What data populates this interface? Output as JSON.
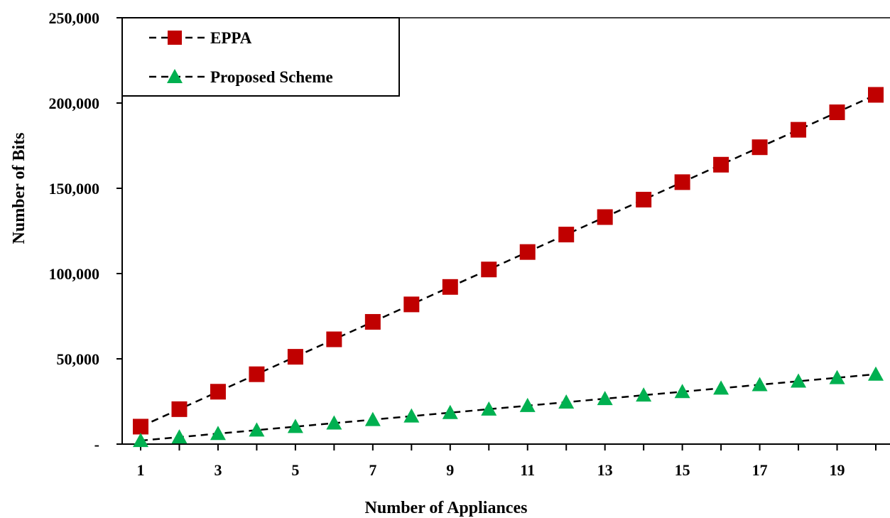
{
  "chart_data": {
    "type": "line",
    "title": "",
    "xlabel": "Number of Appliances",
    "ylabel": "Number of Bits",
    "x": [
      1,
      2,
      3,
      4,
      5,
      6,
      7,
      8,
      9,
      10,
      11,
      12,
      13,
      14,
      15,
      16,
      17,
      18,
      19,
      20
    ],
    "x_tick_labels": [
      "1",
      "3",
      "5",
      "7",
      "9",
      "11",
      "13",
      "15",
      "17",
      "19"
    ],
    "y_tick_labels": [
      "-",
      "50,000",
      "100,000",
      "150,000",
      "200,000",
      "250,000"
    ],
    "xlim": [
      0,
      20.2
    ],
    "ylim": [
      0,
      250000
    ],
    "y_ticks": [
      0,
      50000,
      100000,
      150000,
      200000,
      250000
    ],
    "grid": false,
    "legend_position": "top-left",
    "series": [
      {
        "name": "EPPA",
        "marker": "square",
        "color": "#C00000",
        "line_style": "dashed",
        "values": [
          10240,
          20480,
          30720,
          40960,
          51200,
          61440,
          71680,
          81920,
          92160,
          102400,
          112640,
          122880,
          133120,
          143360,
          153600,
          163840,
          174080,
          184320,
          194560,
          204800
        ]
      },
      {
        "name": "Proposed Scheme",
        "marker": "triangle",
        "color": "#00B050",
        "line_style": "dashed",
        "values": [
          2048,
          4096,
          6144,
          8192,
          10240,
          12288,
          14336,
          16384,
          18432,
          20480,
          22528,
          24576,
          26624,
          28672,
          30720,
          32768,
          34816,
          36864,
          38912,
          40960
        ]
      }
    ]
  }
}
